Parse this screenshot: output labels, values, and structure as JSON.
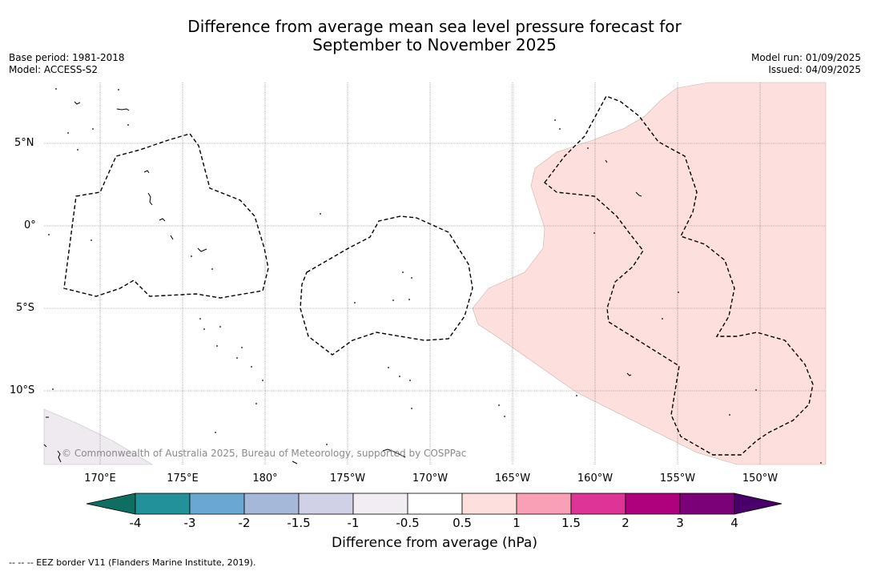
{
  "title_line1": "Difference from average mean sea level pressure forecast for",
  "title_line2": "September to November 2025",
  "base_period": "Base period: 1981-2018",
  "model": "Model: ACCESS-S2",
  "model_run": "Model run: 01/09/2025",
  "issued": "Issued: 04/09/2025",
  "lat_labels": [
    "5°N",
    "0°",
    "5°S",
    "10°S"
  ],
  "lon_labels": [
    "170°E",
    "175°E",
    "180°",
    "175°W",
    "170°W",
    "165°W",
    "160°W",
    "155°W",
    "150°W"
  ],
  "copyright": "© Commonwealth of Australia 2025, Bureau of Meteorology, supported by COSPPac",
  "colorbar": {
    "title": "Difference from average (hPa)",
    "ticks": [
      "-4",
      "-3",
      "-2",
      "-1.5",
      "-1",
      "-0.5",
      "0.5",
      "1",
      "1.5",
      "2",
      "3",
      "4"
    ],
    "colors": [
      "#0f6e62",
      "#23919a",
      "#6aa8d1",
      "#a5b8d9",
      "#d0d1e6",
      "#f1edf3",
      "#ffffff",
      "#fde0dd",
      "#f99fb6",
      "#dd3497",
      "#ae017e",
      "#7a0177",
      "#49006a"
    ]
  },
  "footnote": "--  --  -- EEZ border V11 (Flanders Marine Institute, 2019).",
  "colors": {
    "positive_shade": "#fde0dd",
    "negative_shade": "#f1edf3",
    "grid": "#777777"
  }
}
